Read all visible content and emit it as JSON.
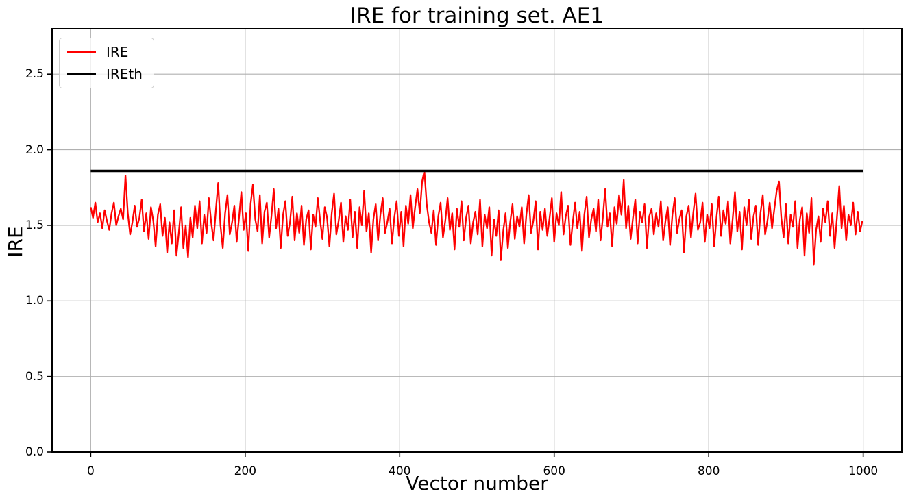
{
  "chart_data": {
    "type": "line",
    "title": "IRE for training set. AE1",
    "xlabel": "Vector number",
    "ylabel": "IRE",
    "xlim": [
      -50,
      1050
    ],
    "ylim": [
      0,
      2.8
    ],
    "xticks": [
      0,
      200,
      400,
      600,
      800,
      1000
    ],
    "xtick_labels": [
      "0",
      "200",
      "400",
      "600",
      "800",
      "1000"
    ],
    "yticks": [
      0,
      0.5,
      1.0,
      1.5,
      2.0,
      2.5
    ],
    "ytick_labels": [
      "0.0",
      "0.5",
      "1.0",
      "1.5",
      "2.0",
      "2.5"
    ],
    "grid": true,
    "grid_color": "#b0b0b0",
    "background": "#ffffff",
    "legend": {
      "position": "upper-left",
      "entries": [
        {
          "label": "IRE",
          "color": "#ff0000"
        },
        {
          "label": "IREth",
          "color": "#000000"
        }
      ]
    },
    "series": [
      {
        "name": "IRE",
        "color": "#ff0000",
        "line_width": 2.3,
        "x_start": 0,
        "x_step": 3,
        "values": [
          1.62,
          1.55,
          1.65,
          1.52,
          1.58,
          1.48,
          1.6,
          1.53,
          1.47,
          1.58,
          1.65,
          1.5,
          1.56,
          1.61,
          1.54,
          1.83,
          1.58,
          1.44,
          1.52,
          1.63,
          1.49,
          1.55,
          1.67,
          1.46,
          1.58,
          1.41,
          1.62,
          1.53,
          1.36,
          1.57,
          1.64,
          1.43,
          1.55,
          1.32,
          1.52,
          1.38,
          1.6,
          1.3,
          1.45,
          1.62,
          1.35,
          1.5,
          1.29,
          1.55,
          1.42,
          1.63,
          1.48,
          1.66,
          1.38,
          1.57,
          1.45,
          1.68,
          1.52,
          1.4,
          1.6,
          1.78,
          1.5,
          1.35,
          1.58,
          1.7,
          1.44,
          1.52,
          1.63,
          1.39,
          1.55,
          1.72,
          1.47,
          1.58,
          1.33,
          1.64,
          1.77,
          1.54,
          1.46,
          1.7,
          1.38,
          1.59,
          1.65,
          1.42,
          1.56,
          1.74,
          1.48,
          1.61,
          1.35,
          1.57,
          1.66,
          1.43,
          1.52,
          1.69,
          1.4,
          1.58,
          1.45,
          1.63,
          1.37,
          1.54,
          1.6,
          1.34,
          1.57,
          1.49,
          1.68,
          1.53,
          1.41,
          1.62,
          1.55,
          1.36,
          1.58,
          1.71,
          1.44,
          1.53,
          1.65,
          1.39,
          1.56,
          1.47,
          1.67,
          1.42,
          1.59,
          1.35,
          1.62,
          1.5,
          1.73,
          1.46,
          1.58,
          1.32,
          1.54,
          1.64,
          1.4,
          1.57,
          1.68,
          1.45,
          1.52,
          1.61,
          1.38,
          1.55,
          1.66,
          1.43,
          1.59,
          1.36,
          1.63,
          1.51,
          1.7,
          1.48,
          1.62,
          1.74,
          1.58,
          1.79,
          1.86,
          1.64,
          1.52,
          1.45,
          1.6,
          1.37,
          1.56,
          1.65,
          1.42,
          1.53,
          1.68,
          1.47,
          1.58,
          1.34,
          1.61,
          1.49,
          1.66,
          1.4,
          1.55,
          1.63,
          1.38,
          1.52,
          1.59,
          1.44,
          1.67,
          1.36,
          1.57,
          1.48,
          1.62,
          1.3,
          1.54,
          1.43,
          1.6,
          1.27,
          1.46,
          1.58,
          1.35,
          1.52,
          1.64,
          1.41,
          1.56,
          1.49,
          1.62,
          1.38,
          1.57,
          1.7,
          1.45,
          1.53,
          1.66,
          1.34,
          1.59,
          1.47,
          1.61,
          1.43,
          1.55,
          1.68,
          1.39,
          1.58,
          1.5,
          1.72,
          1.44,
          1.56,
          1.63,
          1.37,
          1.52,
          1.65,
          1.48,
          1.59,
          1.33,
          1.57,
          1.69,
          1.42,
          1.54,
          1.61,
          1.46,
          1.67,
          1.4,
          1.55,
          1.74,
          1.49,
          1.58,
          1.36,
          1.62,
          1.51,
          1.7,
          1.57,
          1.8,
          1.48,
          1.63,
          1.41,
          1.55,
          1.67,
          1.38,
          1.59,
          1.52,
          1.64,
          1.35,
          1.56,
          1.61,
          1.44,
          1.58,
          1.49,
          1.66,
          1.4,
          1.53,
          1.62,
          1.37,
          1.57,
          1.68,
          1.45,
          1.54,
          1.6,
          1.32,
          1.56,
          1.63,
          1.42,
          1.58,
          1.71,
          1.47,
          1.52,
          1.65,
          1.39,
          1.57,
          1.48,
          1.64,
          1.36,
          1.55,
          1.69,
          1.43,
          1.6,
          1.51,
          1.66,
          1.38,
          1.54,
          1.72,
          1.46,
          1.59,
          1.34,
          1.62,
          1.5,
          1.67,
          1.41,
          1.56,
          1.63,
          1.37,
          1.58,
          1.7,
          1.44,
          1.53,
          1.65,
          1.48,
          1.61,
          1.73,
          1.79,
          1.55,
          1.42,
          1.64,
          1.38,
          1.57,
          1.49,
          1.66,
          1.35,
          1.54,
          1.62,
          1.3,
          1.58,
          1.45,
          1.68,
          1.24,
          1.47,
          1.56,
          1.39,
          1.61,
          1.52,
          1.66,
          1.43,
          1.58,
          1.35,
          1.55,
          1.76,
          1.48,
          1.63,
          1.4,
          1.57,
          1.5,
          1.65,
          1.44,
          1.59,
          1.46,
          1.53
        ]
      },
      {
        "name": "IREth",
        "color": "#000000",
        "line_width": 3.5,
        "x_start": 0,
        "x_step": 1000,
        "values": [
          1.86,
          1.86
        ]
      }
    ]
  }
}
